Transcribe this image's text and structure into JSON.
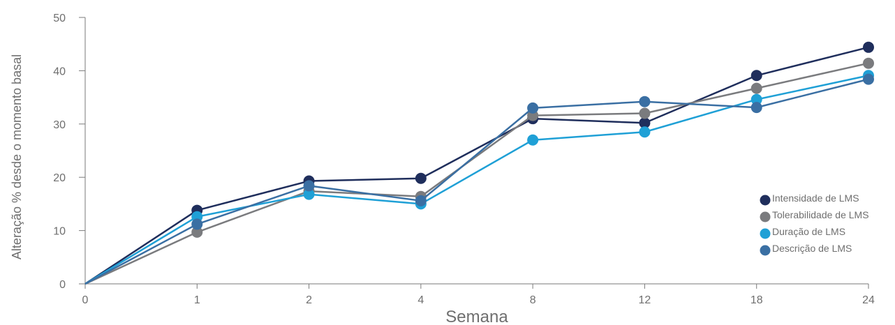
{
  "chart_data": {
    "type": "line",
    "title": "",
    "xlabel": "Semana",
    "ylabel": "Alteração % desde o momento basal",
    "categories": [
      "0",
      "1",
      "2",
      "4",
      "8",
      "12",
      "18",
      "24"
    ],
    "ylim": [
      0,
      50
    ],
    "yticks": [
      0,
      10,
      20,
      30,
      40,
      50
    ],
    "grid": false,
    "legend_position": "right",
    "series": [
      {
        "name": "Intensidade de LMS",
        "color": "#1f2e5c",
        "values": [
          0,
          13.8,
          19.3,
          19.8,
          31.0,
          30.2,
          39.1,
          44.4
        ]
      },
      {
        "name": "Tolerabilidade de LMS",
        "color": "#7a7b7e",
        "values": [
          0,
          9.7,
          17.4,
          16.4,
          31.6,
          32.0,
          36.7,
          41.4
        ]
      },
      {
        "name": "Duração de LMS",
        "color": "#1fa0d6",
        "values": [
          0,
          12.6,
          16.8,
          15.0,
          27.0,
          28.5,
          34.6,
          39.1
        ]
      },
      {
        "name": "Descrição de LMS",
        "color": "#3a6fa3",
        "values": [
          0,
          11.2,
          18.4,
          15.6,
          33.0,
          34.2,
          33.1,
          38.4
        ]
      }
    ]
  }
}
